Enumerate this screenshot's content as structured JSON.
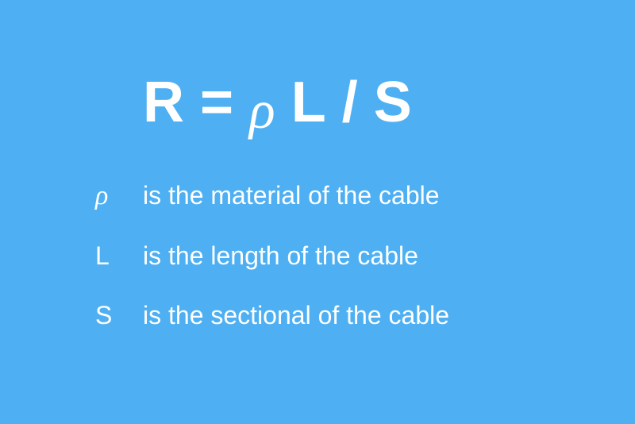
{
  "background_color": "#4eb0f2",
  "text_color": "#ffffff",
  "formula": {
    "R": "R",
    "eq": "=",
    "rho": "ρ",
    "L": "L",
    "slash": "/",
    "S": "S",
    "font_size": 72,
    "font_weight": 900
  },
  "definitions": [
    {
      "symbol": "ρ",
      "text": "is the material of the cable",
      "is_rho": true
    },
    {
      "symbol": "L",
      "text": "is the length of the cable",
      "is_rho": false
    },
    {
      "symbol": "S",
      "text": "is the sectional of the cable",
      "is_rho": false
    }
  ],
  "definition_font_size": 32
}
